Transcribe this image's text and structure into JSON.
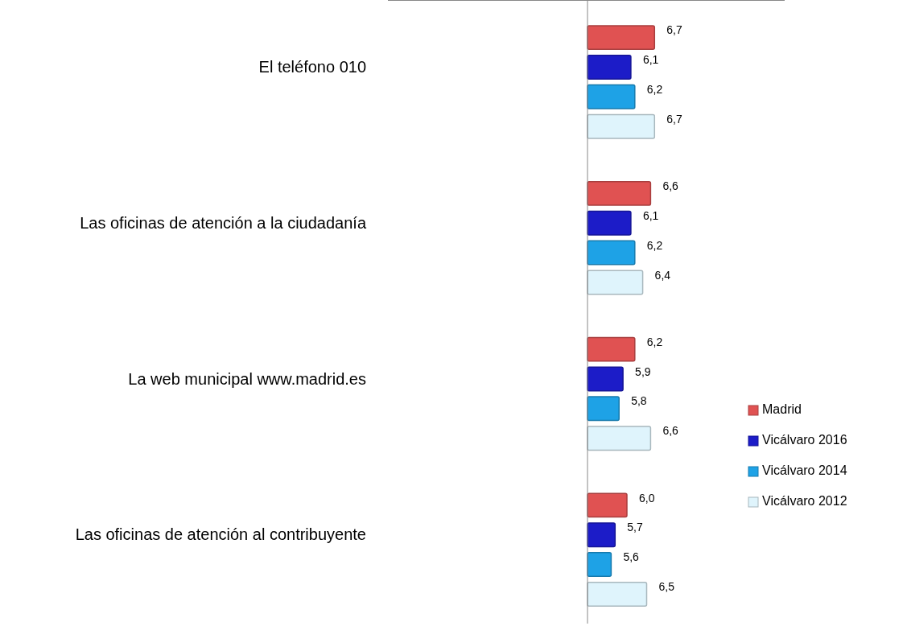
{
  "chart_data": {
    "type": "bar",
    "orientation": "horizontal",
    "categories": [
      "El teléfono 010",
      "Las oficinas de atención a la ciudadanía",
      "La web municipal www.madrid.es",
      "Las oficinas de atención al contribuyente"
    ],
    "series": [
      {
        "name": "Madrid",
        "color": "#e05252",
        "values": [
          6.7,
          6.6,
          6.2,
          6.0
        ],
        "value_labels": [
          "6,7",
          "6,6",
          "6,2",
          "6,0"
        ]
      },
      {
        "name": "Vicálvaro 2016",
        "color": "#1c1cc8",
        "values": [
          6.1,
          6.1,
          5.9,
          5.7
        ],
        "value_labels": [
          "6,1",
          "6,1",
          "5,9",
          "5,7"
        ]
      },
      {
        "name": "Vicálvaro 2014",
        "color": "#1ea2e6",
        "values": [
          6.2,
          6.2,
          5.8,
          5.6
        ],
        "value_labels": [
          "6,2",
          "6,2",
          "5,8",
          "5,6"
        ]
      },
      {
        "name": "Vicálvaro 2012",
        "color": "#dff4fc",
        "values": [
          6.7,
          6.4,
          6.6,
          6.5
        ],
        "value_labels": [
          "6,7",
          "6,4",
          "6,6",
          "6,5"
        ]
      }
    ],
    "xlim": [
      5,
      10
    ],
    "legend": "bottom right"
  }
}
